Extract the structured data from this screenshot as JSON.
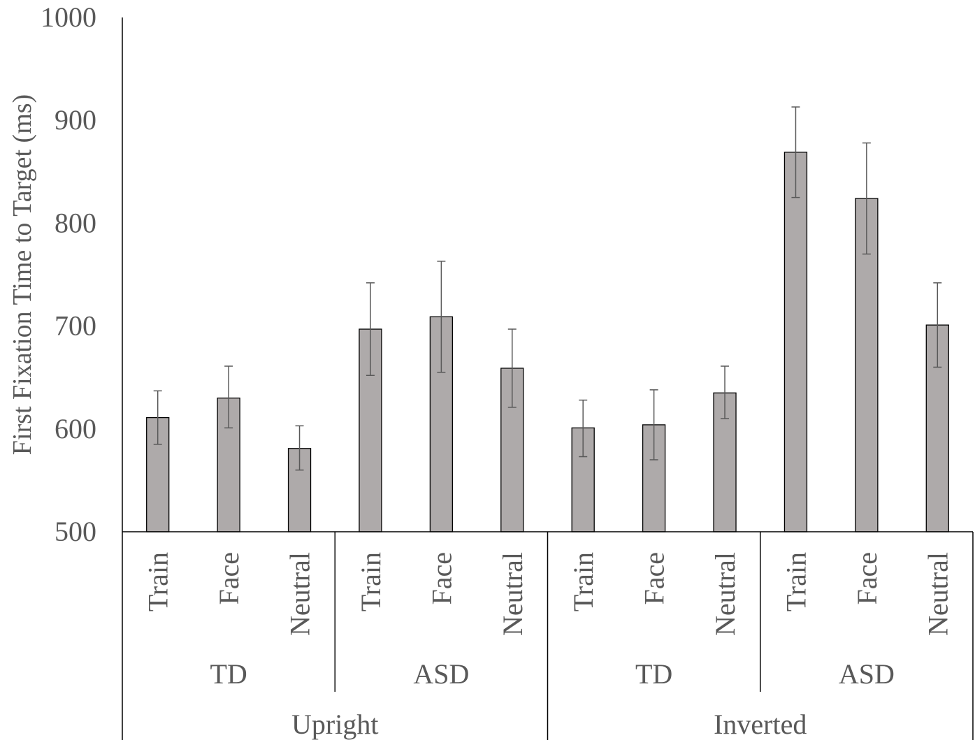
{
  "chart_data": {
    "type": "bar",
    "title": "",
    "xlabel": "",
    "ylabel": "First Fixation Time to Target (ms)",
    "ylim": [
      500,
      1000
    ],
    "yticks": [
      500,
      600,
      700,
      800,
      900,
      1000
    ],
    "grid": false,
    "bar_color": "#aeaaaa",
    "bar_edge_color": "#000000",
    "errorbar_color": "#595959",
    "axis_color": "#000000",
    "text_color": "#595959",
    "categories": [
      "Train",
      "Face",
      "Neutral",
      "Train",
      "Face",
      "Neutral",
      "Train",
      "Face",
      "Neutral",
      "Train",
      "Face",
      "Neutral"
    ],
    "groups": [
      {
        "label": "TD",
        "span": [
          0,
          2
        ]
      },
      {
        "label": "ASD",
        "span": [
          3,
          5
        ]
      },
      {
        "label": "TD",
        "span": [
          6,
          8
        ]
      },
      {
        "label": "ASD",
        "span": [
          9,
          11
        ]
      }
    ],
    "supergroups": [
      {
        "label": "Upright",
        "span": [
          0,
          5
        ]
      },
      {
        "label": "Inverted",
        "span": [
          6,
          11
        ]
      }
    ],
    "series": [
      {
        "values": [
          611,
          630,
          581,
          697,
          709,
          659,
          601,
          604,
          635,
          869,
          824,
          701
        ],
        "error_low": [
          585,
          601,
          560,
          652,
          655,
          621,
          573,
          570,
          610,
          825,
          770,
          660
        ],
        "error_high": [
          637,
          661,
          603,
          742,
          763,
          697,
          628,
          638,
          661,
          913,
          878,
          742
        ]
      }
    ]
  }
}
